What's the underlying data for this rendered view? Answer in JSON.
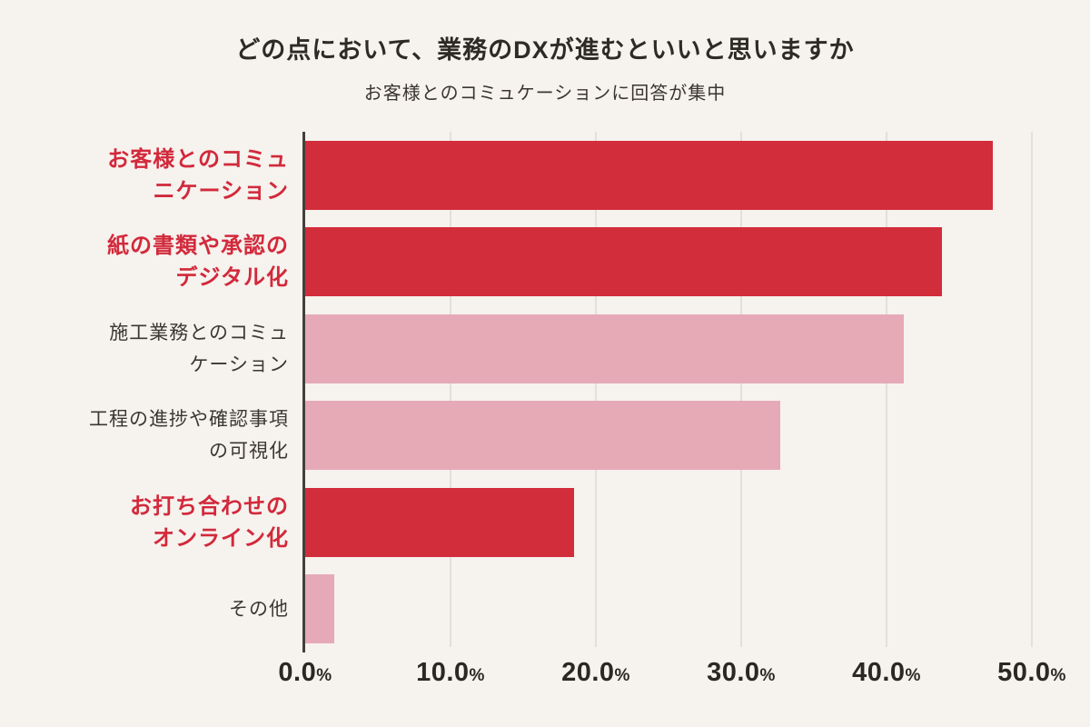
{
  "header": {
    "title": "どの点において、業務のDXが進むといいと思いますか",
    "subtitle": "お客様とのコミュケーションに回答が集中"
  },
  "colors": {
    "background": "#F6F2EE",
    "bar_highlight": "#D22D3B",
    "bar_muted": "#E6AAB6",
    "label_highlight": "#D2293B",
    "label_muted": "#3B3732",
    "axis_line": "#43403C",
    "gridline": "#E3DFDB",
    "tick_text": "#2B2723"
  },
  "chart_data": {
    "type": "bar",
    "orientation": "horizontal",
    "title": "どの点において、業務のDXが進むといいと思いますか",
    "subtitle": "お客様とのコミュケーションに回答が集中",
    "categories": [
      "お客様とのコミュニケーション",
      "紙の書類や承認のデジタル化",
      "施工業務とのコミュケーション",
      "工程の進捗や確認事項の可視化",
      "お打ち合わせのオンライン化",
      "その他"
    ],
    "category_label_lines": [
      [
        "お客様とのコミュ",
        "ニケーション"
      ],
      [
        "紙の書類や承認の",
        "デジタル化"
      ],
      [
        "施工業務とのコミュ",
        "ケーション"
      ],
      [
        "工程の進捗や確認事項",
        "の可視化"
      ],
      [
        "お打ち合わせの",
        "オンライン化"
      ],
      [
        "その他"
      ]
    ],
    "values": [
      47.3,
      43.8,
      41.2,
      32.7,
      18.5,
      2.0
    ],
    "highlighted": [
      true,
      true,
      false,
      false,
      true,
      false
    ],
    "x_ticks": [
      "0.0%",
      "10.0%",
      "20.0%",
      "30.0%",
      "40.0%",
      "50.0%"
    ],
    "x_tick_values": [
      0,
      10,
      20,
      30,
      40,
      50
    ],
    "xlim": [
      0,
      50
    ],
    "grid": "vertical",
    "legend": "none"
  }
}
